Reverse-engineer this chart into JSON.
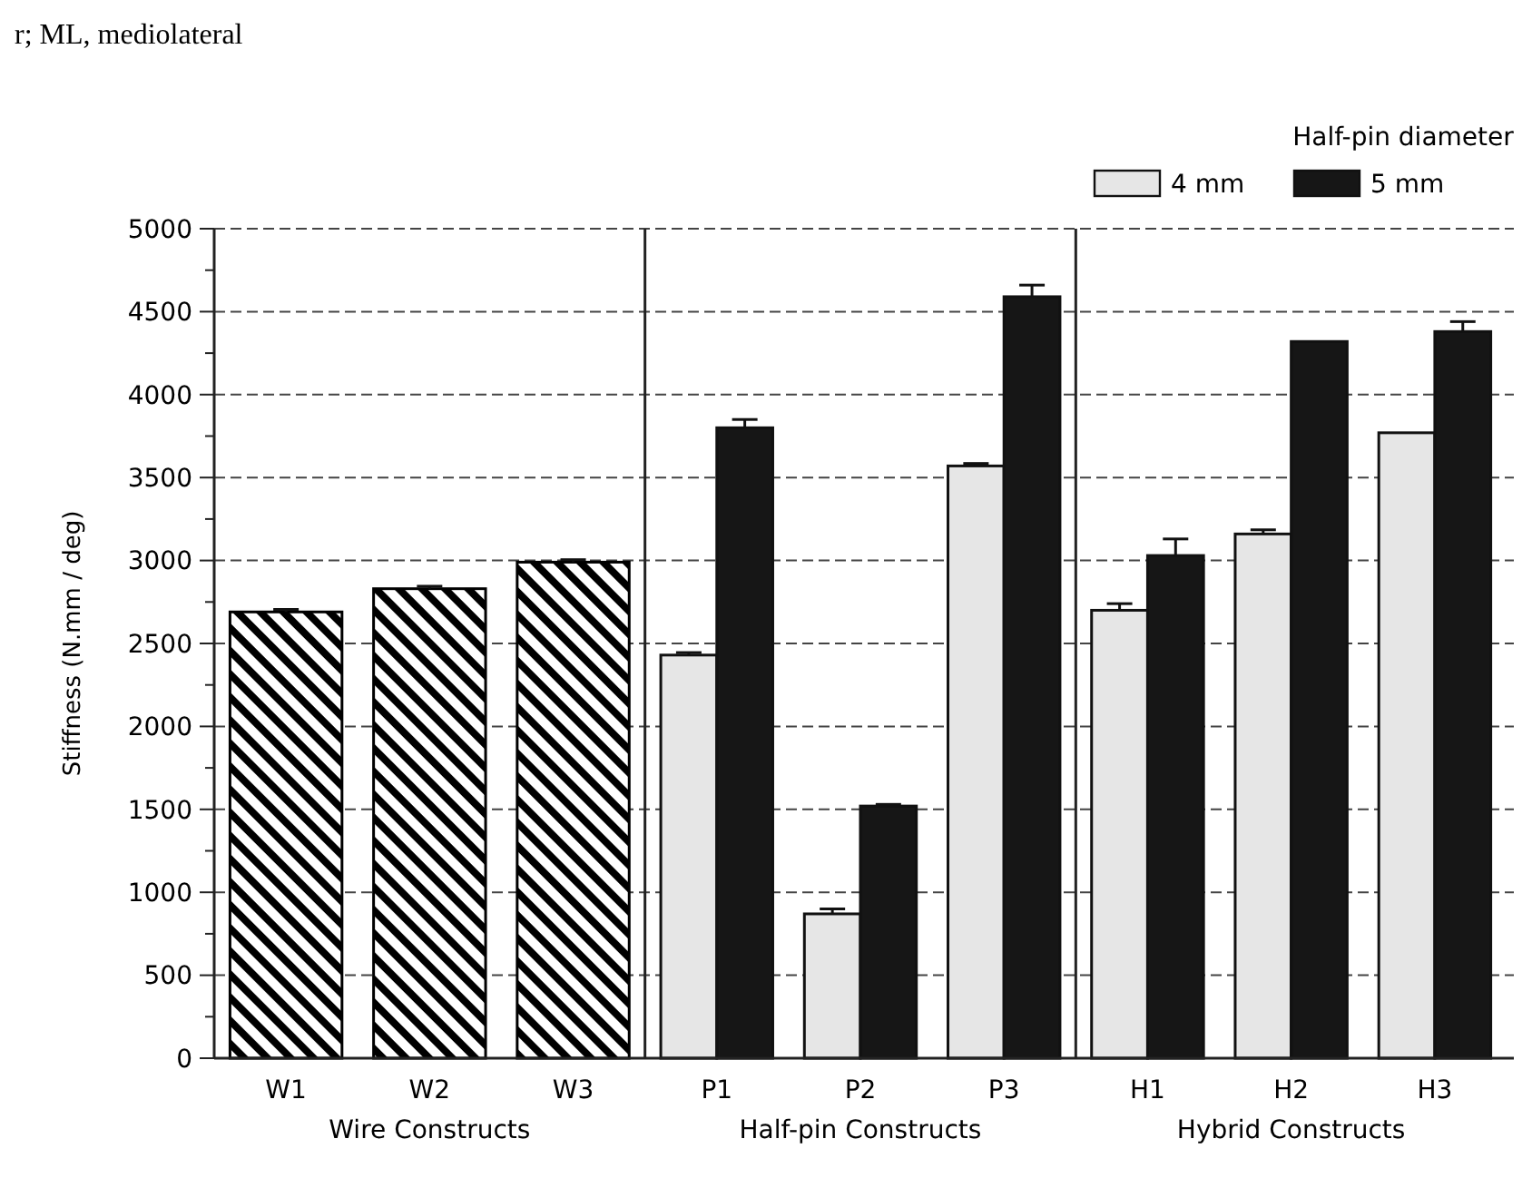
{
  "chart_data": {
    "type": "bar",
    "ylabel": "Stiffness (N.mm / deg)",
    "legend_title": "Half-pin diameter",
    "legend": "top right",
    "categories": [
      "W1",
      "W2",
      "W3",
      "P1",
      "P2",
      "P3",
      "H1",
      "H2",
      "H3"
    ],
    "series": [
      {
        "color": "#000000",
        "values": [
          2690,
          2830,
          2990,
          null,
          null,
          null,
          null,
          null,
          null
        ],
        "errors": [
          15,
          15,
          15,
          null,
          null,
          null,
          null,
          null,
          null
        ]
      },
      {
        "name": "4 mm",
        "color": "#e6e6e6",
        "values": [
          null,
          null,
          null,
          2430,
          870,
          3570,
          2700,
          3160,
          3770
        ],
        "errors": [
          null,
          null,
          null,
          15,
          30,
          15,
          40,
          25,
          null
        ]
      },
      {
        "name": "5 mm",
        "color": "#161616",
        "values": [
          null,
          null,
          null,
          3800,
          1520,
          4590,
          3030,
          4320,
          4380
        ],
        "errors": [
          null,
          null,
          null,
          50,
          10,
          70,
          100,
          null,
          60
        ]
      }
    ],
    "ylim": [
      0,
      5000
    ],
    "yticks": [
      0,
      500,
      1000,
      1500,
      2000,
      2500,
      3000,
      3500,
      4000,
      4500,
      5000
    ],
    "grid": "y",
    "annotations": [
      "r; ML, mediolateral",
      "Wire Constructs",
      "Half-pin Constructs",
      "Hybrid Constructs"
    ]
  }
}
